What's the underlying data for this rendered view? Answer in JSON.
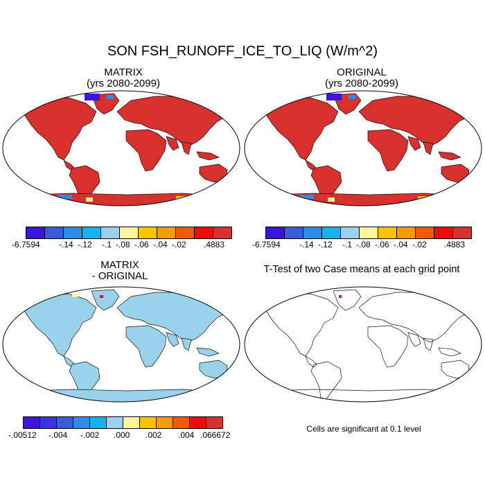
{
  "title": "SON FSH_RUNOFF_ICE_TO_LIQ (W/m^2)",
  "panels": {
    "matrix": {
      "title_line1": "MATRIX",
      "title_line2": "(yrs 2080-2099)"
    },
    "original": {
      "title_line1": "ORIGINAL",
      "title_line2": "(yrs 2080-2099)"
    },
    "diff": {
      "title_line1": "MATRIX",
      "title_line2": "- ORIGINAL"
    },
    "ttest": {
      "title": "T-Test of two Case means at each grid point",
      "note": "Cells are significant at 0.1 level"
    }
  },
  "colorbar_top": {
    "colors": [
      "#3c14dc",
      "#3a5bdc",
      "#2d8ce8",
      "#15b4f0",
      "#9ad2ec",
      "#fff39c",
      "#fcc400",
      "#f79c00",
      "#f25a00",
      "#ee0c0c",
      "#d8302c"
    ],
    "labels": [
      "-6.7594",
      "-.14",
      "-.12",
      "-.1",
      "-.08",
      "-.06",
      "-.04",
      "-.02",
      ".4883"
    ]
  },
  "colorbar_bottom": {
    "colors": [
      "#3c14dc",
      "#3a33e0",
      "#3a5bdc",
      "#2d8ce8",
      "#15b4f0",
      "#9ad2ec",
      "#fff39c",
      "#fcc400",
      "#f79c00",
      "#f25a00",
      "#ee0c0c",
      "#d8302c"
    ],
    "labels": [
      "-.00512",
      "-.004",
      "-.002",
      ".000",
      ".002",
      ".004",
      ".066672"
    ]
  },
  "colors": {
    "field_top": "#d8302c",
    "field_diff": "#9ad2ec",
    "ice_blue": "#3c14dc",
    "significant": "#ee0c0c"
  }
}
